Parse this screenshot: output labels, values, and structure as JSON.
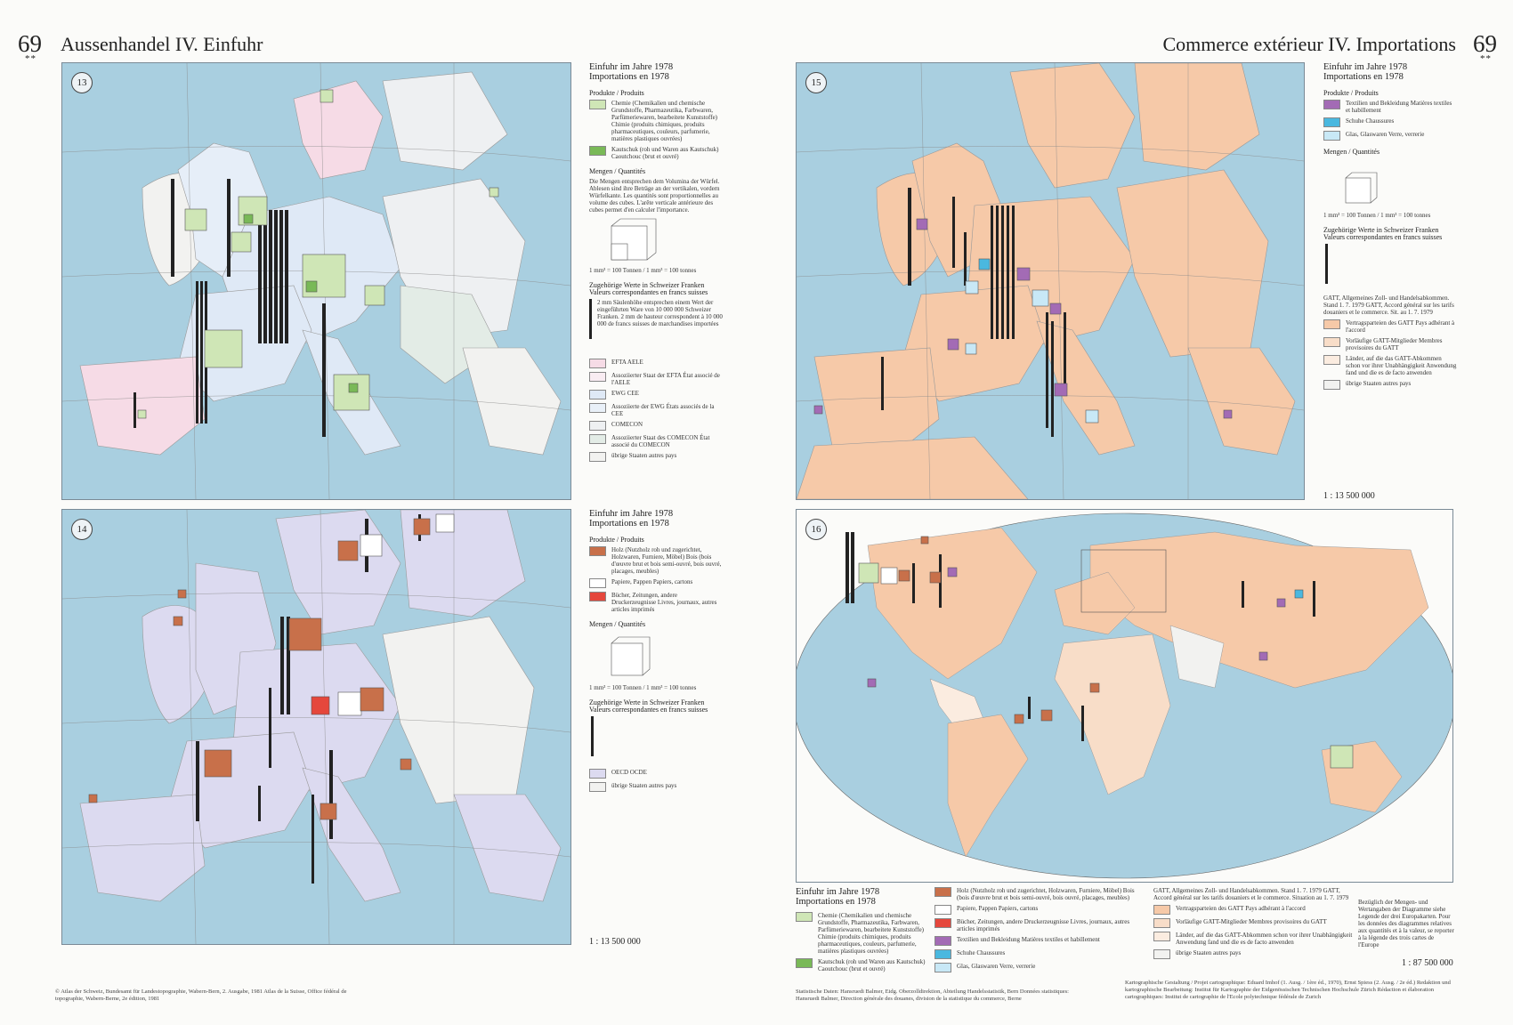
{
  "left": {
    "page_number": "69",
    "stars": "**",
    "title": "Aussenhandel IV. Einfuhr"
  },
  "right": {
    "page_number": "69",
    "stars": "**",
    "title": "Commerce extérieur IV. Importations"
  },
  "maps": {
    "m13": {
      "number": "13"
    },
    "m14": {
      "number": "14"
    },
    "m15": {
      "number": "15"
    },
    "m16": {
      "number": "16"
    }
  },
  "legend13": {
    "title1": "Einfuhr im Jahre 1978",
    "title2": "Importations en 1978",
    "products_head": "Produkte / Produits",
    "items": [
      {
        "label": "Chemie (Chemikalien und chemische Grundstoffe, Pharmazeutika, Farbwaren, Parfümeriewaren, bearbeitete Kunststoffe) Chimie (produits chimiques, produits pharmaceutiques, couleurs, parfumerie, matières plastiques ouvrées)",
        "color": "#cfe6b6"
      },
      {
        "label": "Kautschuk (roh und Waren aus Kautschuk) Caoutchouc (brut et ouvré)",
        "color": "#79b957"
      }
    ],
    "qty_head": "Mengen / Quantités",
    "qty_text": "Die Mengen entsprechen dem Volumina der Würfel. Ablesen sind ihre Beträge an der vertikalen, vordern Würfelkante. Les quantités sont proportionnelles au volume des cubes. L'arête verticale antérieure des cubes permet d'en calculer l'importance.",
    "qty_note": "1 mm³ = 100 Tonnen / 1 mm³ = 100 tonnes",
    "value_head": "Zugehörige Werte in Schweizer Franken Valeurs correspondantes en francs suisses",
    "value_text": "2 mm Säulenhöhe entsprechen einem Wert der eingeführten Ware von 10 000 000 Schweizer Franken. 2 mm de hauteur correspondent à 10 000 000 de francs suisses de marchandises importées",
    "groups": [
      {
        "label": "EFTA AELE",
        "color": "#f6dbe6"
      },
      {
        "label": "Assoziierter Staat der EFTA État associé de l'AELE",
        "color": "#f9ecf2"
      },
      {
        "label": "EWG CEE",
        "color": "#dfe9f6"
      },
      {
        "label": "Assoziierte der EWG États associés de la CEE",
        "color": "#e9f0f8"
      },
      {
        "label": "COMECON",
        "color": "#eef0f2"
      },
      {
        "label": "Assoziierter Staat des COMECON État associé du COMECON",
        "color": "#e3ece6"
      },
      {
        "label": "übrige Staaten autres pays",
        "color": "#f2f2f0"
      }
    ]
  },
  "legend14": {
    "title1": "Einfuhr im Jahre 1978",
    "title2": "Importations en 1978",
    "products_head": "Produkte / Produits",
    "items": [
      {
        "label": "Holz (Nutzholz roh und zugerichtet, Holzwaren, Furniere, Möbel) Bois (bois d'œuvre brut et bois semi-ouvré, bois ouvré, placages, meubles)",
        "color": "#c8704a"
      },
      {
        "label": "Papiere, Pappen Papiers, cartons",
        "color": "#ffffff"
      },
      {
        "label": "Bücher, Zeitungen, andere Druckerzeugnisse Livres, journaux, autres articles imprimés",
        "color": "#e5473c"
      }
    ],
    "qty_head": "Mengen / Quantités",
    "qty_note": "1 mm³ = 100 Tonnen / 1 mm³ = 100 tonnes",
    "value_head": "Zugehörige Werte in Schweizer Franken Valeurs correspondantes en francs suisses",
    "groups": [
      {
        "label": "OECD OCDE",
        "color": "#dcdaf0"
      },
      {
        "label": "übrige Staaten autres pays",
        "color": "#f2f2f0"
      }
    ],
    "scale": "1 : 13 500 000"
  },
  "legend15": {
    "title1": "Einfuhr im Jahre 1978",
    "title2": "Importations en 1978",
    "products_head": "Produkte / Produits",
    "items": [
      {
        "label": "Textilien und Bekleidung Matières textiles et habillement",
        "color": "#a36bb5"
      },
      {
        "label": "Schuhe Chaussures",
        "color": "#4ab8df"
      },
      {
        "label": "Glas, Glaswaren Verre, verrerie",
        "color": "#c8e8f6"
      }
    ],
    "qty_head": "Mengen / Quantités",
    "qty_note": "1 mm³ = 100 Tonnen / 1 mm³ = 100 tonnes",
    "value_head": "Zugehörige Werte in Schweizer Franken Valeurs correspondantes en francs suisses",
    "gatt_head": "GATT, Allgemeines Zoll- und Handelsabkommen. Stand 1. 7. 1979 GATT, Accord général sur les tarifs douaniers et le commerce. Sit. au 1. 7. 1979",
    "groups": [
      {
        "label": "Vertragsparteien des GATT Pays adhérant à l'accord",
        "color": "#f6c9a8"
      },
      {
        "label": "Vorläufige GATT-Mitglieder Membres provisoires du GATT",
        "color": "#f8ddc8"
      },
      {
        "label": "Länder, auf die das GATT-Abkommen schon vor ihrer Unabhängigkeit Anwendung fand und die es de facto anwenden",
        "color": "#fbece0"
      },
      {
        "label": "übrige Staaten autres pays",
        "color": "#f2f2f0"
      }
    ],
    "scale": "1 : 13 500 000"
  },
  "legend16": {
    "title1": "Einfuhr im Jahre 1978",
    "title2": "Importations en 1978",
    "col1": [
      {
        "label": "Chemie (Chemikalien und chemische Grundstoffe, Pharmazeutika, Farbwaren, Parfümeriewaren, bearbeitete Kunststoffe) Chimie (produits chimiques, produits pharmaceutiques, couleurs, parfumerie, matières plastiques ouvrées)",
        "color": "#cfe6b6"
      },
      {
        "label": "Kautschuk (roh und Waren aus Kautschuk) Caoutchouc (brut et ouvré)",
        "color": "#79b957"
      }
    ],
    "col2": [
      {
        "label": "Holz (Nutzholz roh und zugerichtet, Holzwaren, Furniere, Möbel) Bois (bois d'œuvre brut et bois semi-ouvré, bois ouvré, placages, meubles)",
        "color": "#c8704a"
      },
      {
        "label": "Papiere, Pappen Papiers, cartons",
        "color": "#ffffff"
      },
      {
        "label": "Bücher, Zeitungen, andere Druckerzeugnisse Livres, journaux, autres articles imprimés",
        "color": "#e5473c"
      },
      {
        "label": "Textilien und Bekleidung Matières textiles et habillement",
        "color": "#a36bb5"
      },
      {
        "label": "Schuhe Chaussures",
        "color": "#4ab8df"
      },
      {
        "label": "Glas, Glaswaren Verre, verrerie",
        "color": "#c8e8f6"
      }
    ],
    "gatt_head": "GATT, Allgemeines Zoll- und Handelsabkommen. Stand 1. 7. 1979 GATT, Accord général sur les tarifs douaniers et le commerce. Situation au 1. 7. 1979",
    "col3": [
      {
        "label": "Vertragsparteien des GATT Pays adhérant à l'accord",
        "color": "#f6c9a8"
      },
      {
        "label": "Vorläufige GATT-Mitglieder Membres provisoires du GATT",
        "color": "#f8ddc8"
      },
      {
        "label": "Länder, auf die das GATT-Abkommen schon vor ihrer Unabhängigkeit Anwendung fand und die es de facto anwenden",
        "color": "#fbece0"
      },
      {
        "label": "übrige Staaten autres pays",
        "color": "#f2f2f0"
      }
    ],
    "note": "Bezüglich der Mengen- und Wertangaben der Diagramme siehe Legende der drei Europakarten. Pour les données des diagrammes relatives aux quantités et à la valeur, se reporter à la légende des trois cartes de l'Europe",
    "scale": "1 : 87 500 000"
  },
  "footer": {
    "left": "© Atlas der Schweiz, Bundesamt für Landestopographie, Wabern-Bern, 2. Ausgabe, 1981 Atlas de la Suisse, Office fédéral de topographie, Wabern-Berne, 2e édition, 1981",
    "mid": "Statistische Daten: Hansruedi Balmer, Eidg. Oberzolldirektion, Abteilung Handelsstatistik, Bern Données statistiques: Hansruedi Balmer, Direction générale des douanes, division de la statistique du commerce, Berne",
    "right": "Kartographische Gestaltung / Projet cartographique: Eduard Imhof (1. Ausg. / 1ère éd., 1970), Ernst Spiess (2. Ausg. / 2e éd.) Redaktion und kartographische Bearbeitung: Institut für Kartographie der Eidgenössischen Technischen Hochschule Zürich Rédaction et élaboration cartographiques: Institut de cartographie de l'Ecole polytechnique fédérale de Zurich"
  }
}
